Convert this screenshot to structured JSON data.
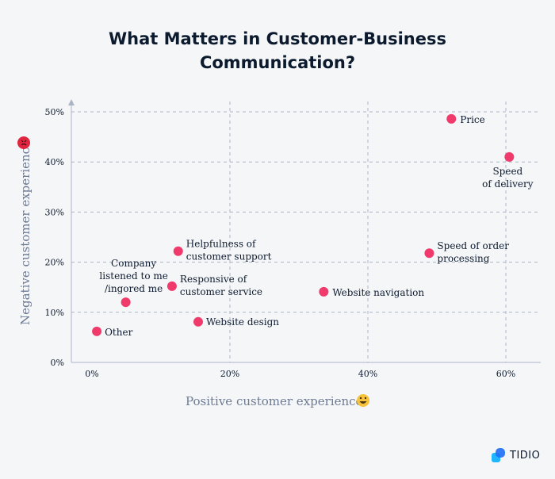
{
  "chart_data": {
    "type": "scatter",
    "title_lines": [
      "What Matters in Customer-Business",
      "Communication?"
    ],
    "xlabel": "Positive customer experience",
    "ylabel": "Negative customer experience",
    "xlim": [
      -3,
      65
    ],
    "ylim": [
      0,
      52
    ],
    "x_ticks": [
      0,
      20,
      40,
      60
    ],
    "x_tick_labels": [
      "0%",
      "20%",
      "40%",
      "60%"
    ],
    "y_ticks": [
      0,
      10,
      20,
      30,
      40,
      50
    ],
    "y_tick_labels": [
      "0%",
      "10%",
      "20%",
      "30%",
      "40%",
      "50%"
    ],
    "grid": true,
    "point_color": "#f03a6c",
    "points": [
      {
        "label": [
          "Price"
        ],
        "x": 52.1,
        "y": 48.6
      },
      {
        "label": [
          "Speed",
          "of delivery"
        ],
        "x": 60.5,
        "y": 41.0
      },
      {
        "label": [
          "Speed of order",
          "processing"
        ],
        "x": 48.9,
        "y": 21.8
      },
      {
        "label": [
          "Website navigation"
        ],
        "x": 33.6,
        "y": 14.1
      },
      {
        "label": [
          "Helpfulness of",
          "customer support"
        ],
        "x": 12.5,
        "y": 22.2
      },
      {
        "label": [
          "Responsive of",
          "customer service"
        ],
        "x": 11.6,
        "y": 15.2
      },
      {
        "label": [
          "Website design"
        ],
        "x": 15.4,
        "y": 8.1
      },
      {
        "label": [
          "Company",
          "listened to me",
          "/ingored me"
        ],
        "x": 4.9,
        "y": 12.0
      },
      {
        "label": [
          "Other"
        ],
        "x": 0.7,
        "y": 6.2
      }
    ],
    "xlabel_icon": "grinning-face-icon",
    "ylabel_icon": "angry-face-icon"
  },
  "brand": {
    "name": "TIDIO",
    "icon": "tidio-logo-icon"
  }
}
